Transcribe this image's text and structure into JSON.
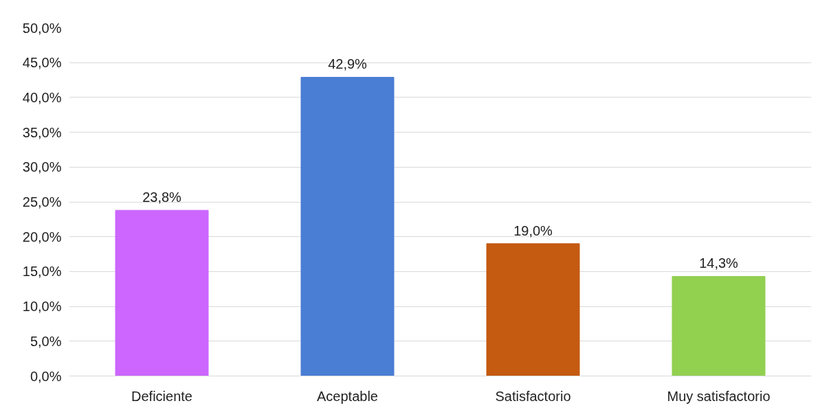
{
  "chart_data": {
    "type": "bar",
    "categories": [
      "Deficiente",
      "Aceptable",
      "Satisfactorio",
      "Muy satisfactorio"
    ],
    "values": [
      23.8,
      42.9,
      19.0,
      14.3
    ],
    "colors": [
      "#cc66ff",
      "#4a7dd4",
      "#c55a11",
      "#92d050"
    ],
    "value_labels": [
      "23,8%",
      "42,9%",
      "19,0%",
      "14,3%"
    ],
    "ylim": [
      0,
      50
    ],
    "yticks": [
      {
        "value": 0,
        "label": "0,0%"
      },
      {
        "value": 5,
        "label": "5,0%"
      },
      {
        "value": 10,
        "label": "10,0%"
      },
      {
        "value": 15,
        "label": "15,0%"
      },
      {
        "value": 20,
        "label": "20,0%"
      },
      {
        "value": 25,
        "label": "25,0%"
      },
      {
        "value": 30,
        "label": "30,0%"
      },
      {
        "value": 35,
        "label": "35,0%"
      },
      {
        "value": 40,
        "label": "40,0%"
      },
      {
        "value": 45,
        "label": "45,0%"
      },
      {
        "value": 50,
        "label": "50,0%"
      }
    ],
    "grid": "y"
  }
}
